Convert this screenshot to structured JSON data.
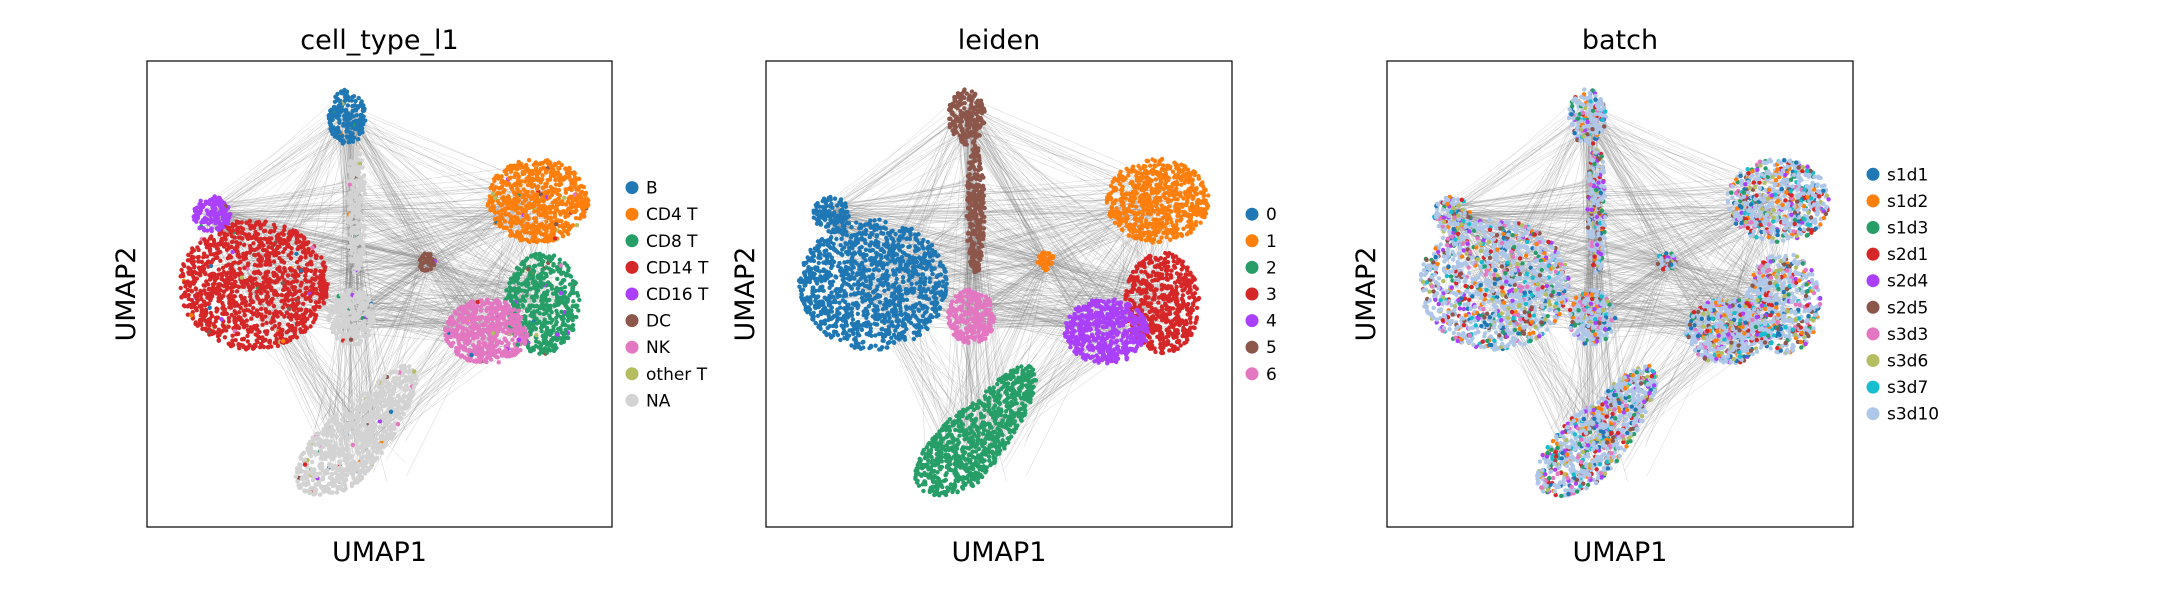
{
  "chart_data": [
    {
      "type": "scatter",
      "title": "cell_type_l1",
      "xlabel": "UMAP1",
      "ylabel": "UMAP2",
      "legend_position": "right",
      "legend": [
        {
          "label": "B",
          "color": "#1f77b4"
        },
        {
          "label": "CD4 T",
          "color": "#ff7f0e"
        },
        {
          "label": "CD8 T",
          "color": "#279e68"
        },
        {
          "label": "CD14 T",
          "color": "#d62728"
        },
        {
          "label": "CD16 T",
          "color": "#aa40fc"
        },
        {
          "label": "DC",
          "color": "#8c564b"
        },
        {
          "label": "NK",
          "color": "#e377c2"
        },
        {
          "label": "other T",
          "color": "#b5bd61"
        },
        {
          "label": "NA",
          "color": "#d3d3d3"
        }
      ]
    },
    {
      "type": "scatter",
      "title": "leiden",
      "xlabel": "UMAP1",
      "ylabel": "UMAP2",
      "legend_position": "right",
      "legend": [
        {
          "label": "0",
          "color": "#1f77b4"
        },
        {
          "label": "1",
          "color": "#ff7f0e"
        },
        {
          "label": "2",
          "color": "#279e68"
        },
        {
          "label": "3",
          "color": "#d62728"
        },
        {
          "label": "4",
          "color": "#aa40fc"
        },
        {
          "label": "5",
          "color": "#8c564b"
        },
        {
          "label": "6",
          "color": "#e377c2"
        }
      ]
    },
    {
      "type": "scatter",
      "title": "batch",
      "xlabel": "UMAP1",
      "ylabel": "UMAP2",
      "legend_position": "right",
      "legend": [
        {
          "label": "s1d1",
          "color": "#1f77b4"
        },
        {
          "label": "s1d2",
          "color": "#ff7f0e"
        },
        {
          "label": "s1d3",
          "color": "#279e68"
        },
        {
          "label": "s2d1",
          "color": "#d62728"
        },
        {
          "label": "s2d4",
          "color": "#aa40fc"
        },
        {
          "label": "s2d5",
          "color": "#8c564b"
        },
        {
          "label": "s3d3",
          "color": "#e377c2"
        },
        {
          "label": "s3d6",
          "color": "#b5bd61"
        },
        {
          "label": "s3d7",
          "color": "#17becf"
        },
        {
          "label": "s3d10",
          "color": "#aec7e8"
        }
      ]
    }
  ],
  "colors": {
    "edges": "#808080",
    "frame": "#000000"
  }
}
